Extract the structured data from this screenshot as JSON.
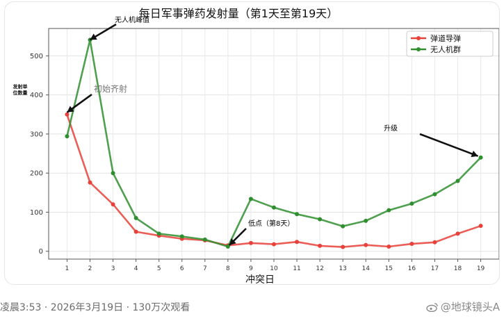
{
  "chart_data": {
    "type": "line",
    "title": "每日军事弹药发射量（第1天至第19天）",
    "xlabel": "冲突日",
    "ylabel": "发射单位数量",
    "ylabel_lines": [
      "发射单",
      "位数量"
    ],
    "x": [
      1,
      2,
      3,
      4,
      5,
      6,
      7,
      8,
      9,
      10,
      11,
      12,
      13,
      14,
      15,
      16,
      17,
      18,
      19
    ],
    "xlim": [
      0.2,
      19.8
    ],
    "ylim": [
      -20,
      570
    ],
    "yticks": [
      0,
      100,
      200,
      300,
      400,
      500
    ],
    "grid": true,
    "legend_position": "top-right",
    "series": [
      {
        "name": "弹道导弹",
        "color": "#e8413a",
        "values": [
          350,
          176,
          120,
          50,
          40,
          32,
          28,
          15,
          21,
          18,
          24,
          14,
          11,
          16,
          12,
          19,
          23,
          45,
          65
        ]
      },
      {
        "name": "无人机群",
        "color": "#2f8f2f",
        "values": [
          294,
          541,
          200,
          85,
          45,
          38,
          30,
          12,
          134,
          112,
          95,
          82,
          64,
          78,
          105,
          122,
          146,
          180,
          240
        ]
      }
    ],
    "annotations": [
      {
        "text": "无人机峰值",
        "x": 2,
        "y": 541,
        "color": "#000000"
      },
      {
        "text": "初始齐射",
        "x": 1,
        "y": 350,
        "color": "#777777"
      },
      {
        "text": "低点（第8天）",
        "x": 8,
        "y": 12,
        "color": "#000000"
      },
      {
        "text": "升级",
        "x": 19,
        "y": 240,
        "color": "#000000"
      }
    ]
  },
  "footer": {
    "meta": "凌晨3:53 · 2026年3月19日 · 130万次观看",
    "watermark": "@地球镜头A"
  }
}
